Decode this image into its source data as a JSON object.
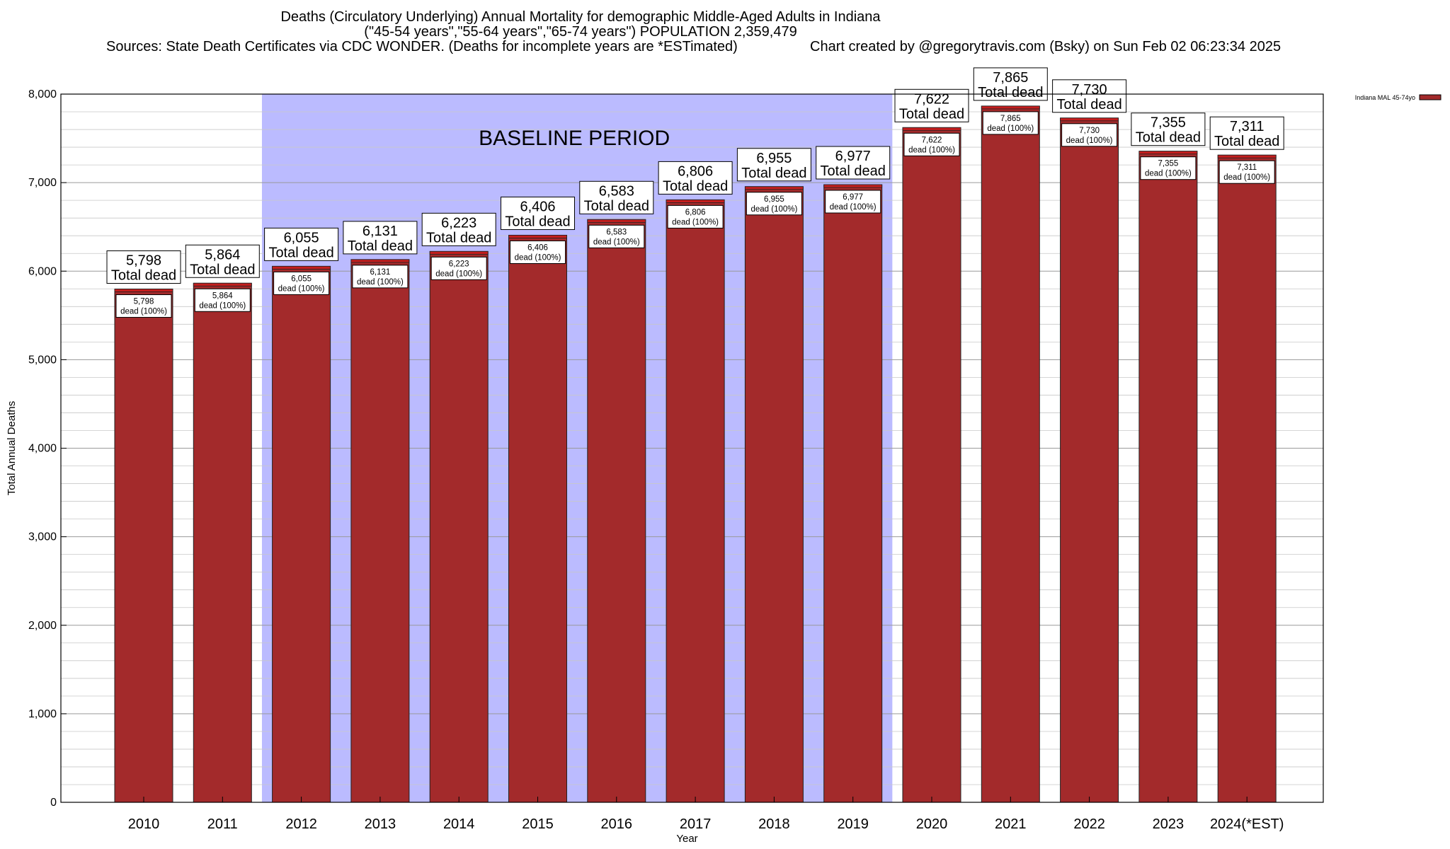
{
  "title": {
    "line1": "Deaths (Circulatory Underlying) Annual Mortality for demographic Middle-Aged Adults in Indiana",
    "line2": "(\"45-54 years\",\"55-64 years\",\"65-74 years\") POPULATION 2,359,479",
    "line3": "Sources: State Death Certificates via CDC WONDER. (Deaths for incomplete years are *ESTimated)",
    "line4": "Chart created by @gregorytravis.com (Bsky) on Sun Feb 02 06:23:34 2025"
  },
  "chart_data": {
    "type": "bar",
    "categories": [
      "2010",
      "2011",
      "2012",
      "2013",
      "2014",
      "2015",
      "2016",
      "2017",
      "2018",
      "2019",
      "2020",
      "2021",
      "2022",
      "2023",
      "2024(*EST)"
    ],
    "series": [
      {
        "name": "Indiana MAL 45-74yo",
        "values": [
          5798,
          5864,
          6055,
          6131,
          6223,
          6406,
          6583,
          6806,
          6955,
          6977,
          7622,
          7865,
          7730,
          7355,
          7311
        ],
        "color": "#a32a2b"
      }
    ],
    "value_labels": [
      "5,798",
      "5,864",
      "6,055",
      "6,131",
      "6,223",
      "6,406",
      "6,583",
      "6,806",
      "6,955",
      "6,977",
      "7,622",
      "7,865",
      "7,730",
      "7,355",
      "7,311"
    ],
    "total_label": "Total dead",
    "inner_label": "dead (100%)",
    "xlabel": "Year",
    "ylabel": "Total Annual Deaths",
    "ylim": [
      0,
      8000
    ],
    "yticks": [
      0,
      1000,
      2000,
      3000,
      4000,
      5000,
      6000,
      7000,
      8000
    ],
    "ytick_labels": [
      "0",
      "1,000",
      "2,000",
      "3,000",
      "4,000",
      "5,000",
      "6,000",
      "7,000",
      "8,000"
    ],
    "grid": true,
    "legend_position": "top-right",
    "baseline_region": {
      "label": "BASELINE PERIOD",
      "from": "2012",
      "to": "2019",
      "color": "#bbbbff"
    },
    "bar_top_band_color": "#c41e1e"
  }
}
